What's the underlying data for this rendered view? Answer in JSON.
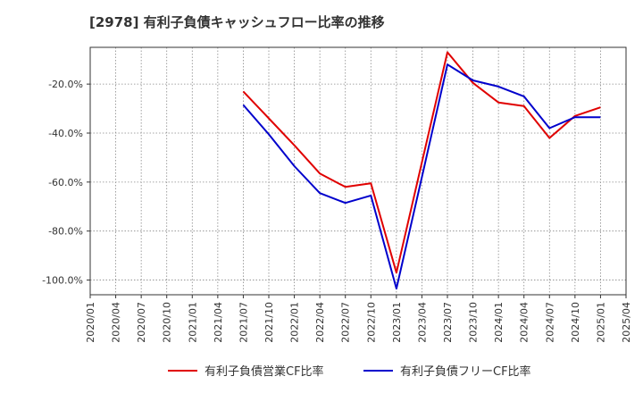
{
  "chart_data": {
    "type": "line",
    "title": "[2978]  有利子負債キャッシュフロー比率の推移",
    "xlabel": "",
    "ylabel": "",
    "x_ticks": [
      "2020/01",
      "2020/04",
      "2020/07",
      "2020/10",
      "2021/01",
      "2021/04",
      "2021/07",
      "2021/10",
      "2022/01",
      "2022/04",
      "2022/07",
      "2022/10",
      "2023/01",
      "2023/04",
      "2023/07",
      "2023/10",
      "2024/01",
      "2024/04",
      "2024/07",
      "2024/10",
      "2025/01",
      "2025/04"
    ],
    "y_ticks": [
      "-20.0%",
      "-40.0%",
      "-60.0%",
      "-80.0%",
      "-100.0%"
    ],
    "y_tick_values": [
      -20,
      -40,
      -60,
      -80,
      -100
    ],
    "ylim": [
      -106,
      -5
    ],
    "grid": true,
    "legend_position": "bottom",
    "series": [
      {
        "name": "有利子負債営業CF比率",
        "color": "#e00000",
        "x": [
          "2021/07",
          "2021/10",
          "2022/01",
          "2022/04",
          "2022/07",
          "2022/10",
          "2023/01",
          "2023/04",
          "2023/07",
          "2023/10",
          "2024/01",
          "2024/04",
          "2024/07",
          "2024/10",
          "2025/01"
        ],
        "values": [
          -23,
          -34,
          -45,
          -56.5,
          -62,
          -60.5,
          -97,
          -52,
          -7,
          -19.5,
          -27.5,
          -29,
          -42,
          -33,
          -29.5
        ]
      },
      {
        "name": "有利子負債フリーCF比率",
        "color": "#0000cc",
        "x": [
          "2021/07",
          "2021/10",
          "2022/01",
          "2022/04",
          "2022/07",
          "2022/10",
          "2023/01",
          "2023/04",
          "2023/07",
          "2023/10",
          "2024/01",
          "2024/04",
          "2024/07",
          "2024/10",
          "2025/01"
        ],
        "values": [
          -28.5,
          -40.5,
          -53.5,
          -64.5,
          -68.5,
          -65.5,
          -103.5,
          -58,
          -12,
          -18.5,
          -21,
          -25,
          -38,
          -33.5,
          -33.5
        ]
      }
    ]
  }
}
